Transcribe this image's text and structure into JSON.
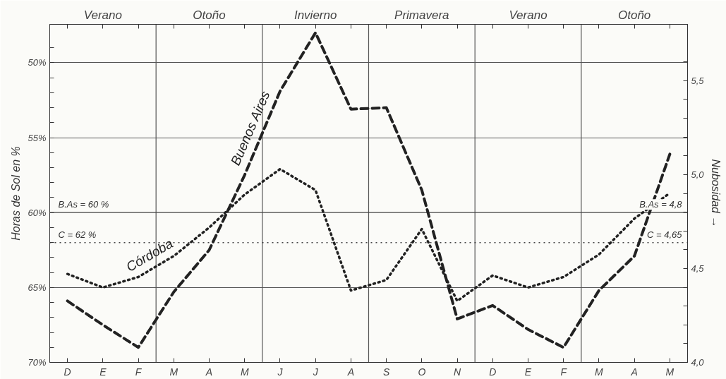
{
  "chart_data": {
    "type": "line",
    "ylabel": "Horas de Sol en %",
    "y2label": "Nubosidad →",
    "annotations": [
      "Verano",
      "Otoño",
      "Invierno",
      "Primavera",
      "Verano",
      "Otoño",
      {
        "text": "B.As = 4,8",
        "y": 60
      },
      {
        "text": "C = 4,65",
        "y": 62
      }
    ],
    "categories": [
      "D",
      "E",
      "F",
      "M",
      "A",
      "M",
      "J",
      "J",
      "A",
      "S",
      "O",
      "N",
      "D",
      "E",
      "F",
      "M",
      "A",
      "M"
    ],
    "ylim": [
      70,
      47.44
    ],
    "yticks": [
      {
        "value": 70,
        "label": "70%"
      },
      {
        "value": 69,
        "label": null
      },
      {
        "value": 68,
        "label": null
      },
      {
        "value": 67,
        "label": null
      },
      {
        "value": 66,
        "label": null
      },
      {
        "value": 65,
        "label": "65%"
      },
      {
        "value": 64,
        "label": null
      },
      {
        "value": 63,
        "label": null
      },
      {
        "value": 62,
        "label": null
      },
      {
        "value": 61,
        "label": null
      },
      {
        "value": 60,
        "label": "60%"
      },
      {
        "value": 59,
        "label": null
      },
      {
        "value": 58,
        "label": null
      },
      {
        "value": 57,
        "label": null
      },
      {
        "value": 56,
        "label": null
      },
      {
        "value": 55,
        "label": "55%"
      },
      {
        "value": 54,
        "label": null
      },
      {
        "value": 53,
        "label": null
      },
      {
        "value": 52,
        "label": null
      },
      {
        "value": 51,
        "label": null
      },
      {
        "value": 50,
        "label": "50%"
      },
      {
        "value": 49,
        "label": null
      }
    ],
    "y2lim": [
      4.0,
      5.8
    ],
    "y2ticks": [
      {
        "value": 4.0,
        "label": "4,0"
      },
      {
        "value": 4.1,
        "label": null
      },
      {
        "value": 4.2,
        "label": null
      },
      {
        "value": 4.3,
        "label": null
      },
      {
        "value": 4.4,
        "label": null
      },
      {
        "value": 4.5,
        "label": "4,5"
      },
      {
        "value": 4.6,
        "label": null
      },
      {
        "value": 4.7,
        "label": null
      },
      {
        "value": 4.8,
        "label": null
      },
      {
        "value": 4.9,
        "label": null
      },
      {
        "value": 5.0,
        "label": "5,0"
      },
      {
        "value": 5.1,
        "label": null
      },
      {
        "value": 5.2,
        "label": null
      },
      {
        "value": 5.3,
        "label": null
      },
      {
        "value": 5.4,
        "label": null
      },
      {
        "value": 5.5,
        "label": "5,5"
      },
      {
        "value": 5.6,
        "label": null
      }
    ],
    "grid": "y",
    "series": [
      {
        "name": "Buenos Aires",
        "color": "#222222",
        "line_style": "dashed",
        "values": [
          65.9,
          67.5,
          69.0,
          65.3,
          62.5,
          57.5,
          51.9,
          48.0,
          53.1,
          53.0,
          58.5,
          67.1,
          66.2,
          67.8,
          69.0,
          65.2,
          62.9,
          56.1
        ]
      },
      {
        "name": "Córdoba",
        "color": "#222222",
        "line_style": "dotted",
        "values": [
          64.1,
          65.0,
          64.3,
          62.9,
          61.0,
          58.8,
          57.1,
          58.5,
          65.2,
          64.5,
          61.1,
          65.9,
          64.2,
          65.0,
          64.3,
          62.8,
          60.4,
          58.7
        ]
      }
    ],
    "ref_lines": [
      {
        "axis": "y",
        "value": 60,
        "label": "B.As = 60 %",
        "line_style": "solid"
      },
      {
        "axis": "y",
        "value": 62,
        "label": "C = 62 %",
        "line_style": "dotted"
      }
    ]
  }
}
